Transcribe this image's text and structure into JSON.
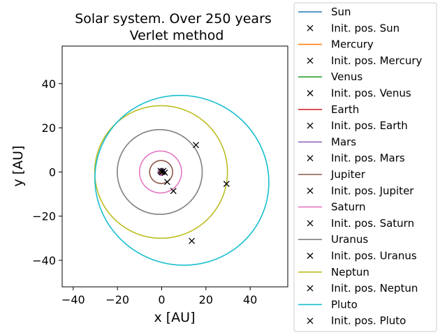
{
  "chart_data": {
    "type": "line",
    "title": [
      "Solar system. Over 250 years",
      "Verlet method"
    ],
    "xlabel": "x [AU]",
    "ylabel": "y [AU]",
    "xlim": [
      -45,
      57
    ],
    "ylim": [
      -52,
      57
    ],
    "xticks": [
      -40,
      -20,
      0,
      20,
      40
    ],
    "yticks": [
      -40,
      -20,
      0,
      20,
      40
    ],
    "xtick_labels": [
      "−40",
      "−20",
      "0",
      "20",
      "40"
    ],
    "ytick_labels": [
      "−40",
      "−20",
      "0",
      "20",
      "40"
    ],
    "grid": false,
    "legend_position": "outside-right",
    "series": [
      {
        "name": "Sun",
        "color": "#1f77b4",
        "orbit": {
          "a": 0.005,
          "e": 0,
          "angle": 0
        },
        "init_pos": [
          0.0,
          0.0
        ],
        "init_label": "Init. pos. Sun"
      },
      {
        "name": "Mercury",
        "color": "#ff7f0e",
        "orbit": {
          "a": 0.39,
          "e": 0.21,
          "angle": 0.5
        },
        "init_pos": [
          0.3,
          0.1
        ],
        "init_label": "Init. pos. Mercury"
      },
      {
        "name": "Venus",
        "color": "#2ca02c",
        "orbit": {
          "a": 0.72,
          "e": 0.007,
          "angle": 0
        },
        "init_pos": [
          -0.5,
          0.5
        ],
        "init_label": "Init. pos. Venus"
      },
      {
        "name": "Earth",
        "color": "#d62728",
        "orbit": {
          "a": 1.0,
          "e": 0.017,
          "angle": 0
        },
        "init_pos": [
          0.8,
          0.5
        ],
        "init_label": "Init. pos. Earth"
      },
      {
        "name": "Mars",
        "color": "#9467bd",
        "orbit": {
          "a": 1.52,
          "e": 0.093,
          "angle": 0
        },
        "init_pos": [
          1.4,
          -0.3
        ],
        "init_label": "Init. pos. Mars"
      },
      {
        "name": "Jupiter",
        "color": "#8c564b",
        "orbit": {
          "a": 5.2,
          "e": 0.049,
          "angle": 0
        },
        "init_pos": [
          2.5,
          -4.5
        ],
        "init_label": "Init. pos. Jupiter"
      },
      {
        "name": "Saturn",
        "color": "#e377c2",
        "orbit": {
          "a": 9.5,
          "e": 0.057,
          "angle": 0
        },
        "init_pos": [
          5.3,
          -8.6
        ],
        "init_label": "Init. pos. Saturn"
      },
      {
        "name": "Uranus",
        "color": "#7f7f7f",
        "orbit": {
          "a": 19.2,
          "e": 0.046,
          "angle": 0
        },
        "init_pos": [
          15.5,
          12.2
        ],
        "init_label": "Init. pos. Uranus"
      },
      {
        "name": "Neptun",
        "color": "#bcbd22",
        "orbit": {
          "a": 30.0,
          "e": 0.009,
          "angle": 0
        },
        "init_pos": [
          29.3,
          -5.4
        ],
        "init_label": "Init. pos. Neptun"
      },
      {
        "name": "Pluto",
        "color": "#17becf",
        "orbit": {
          "a": 39.5,
          "e": 0.25,
          "angle": 2.75
        },
        "init_pos": [
          13.6,
          -31.2
        ],
        "init_label": "Init. pos. Pluto"
      }
    ]
  }
}
